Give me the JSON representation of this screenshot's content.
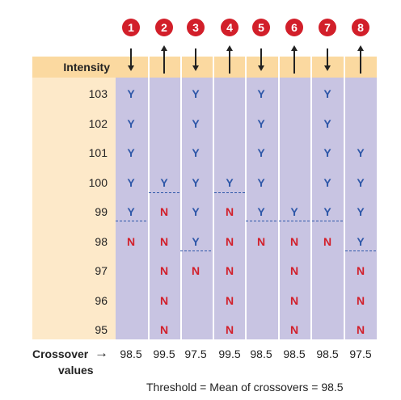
{
  "header": {
    "intensity_label": "Intensity",
    "trial_numbers": [
      "1",
      "2",
      "3",
      "4",
      "5",
      "6",
      "7",
      "8"
    ],
    "trial_directions": [
      "down",
      "up",
      "down",
      "up",
      "down",
      "up",
      "down",
      "up"
    ]
  },
  "intensities": [
    "103",
    "102",
    "101",
    "100",
    "99",
    "98",
    "97",
    "96",
    "95"
  ],
  "grid": [
    [
      "Y",
      "",
      "Y",
      "",
      "Y",
      "",
      "Y",
      ""
    ],
    [
      "Y",
      "",
      "Y",
      "",
      "Y",
      "",
      "Y",
      ""
    ],
    [
      "Y",
      "",
      "Y",
      "",
      "Y",
      "",
      "Y",
      "Y"
    ],
    [
      "Y",
      "Y",
      "Y",
      "Y",
      "Y",
      "",
      "Y",
      "Y"
    ],
    [
      "Y",
      "N",
      "Y",
      "N",
      "Y",
      "Y",
      "Y",
      "Y"
    ],
    [
      "N",
      "N",
      "Y",
      "N",
      "N",
      "N",
      "N",
      "Y"
    ],
    [
      "",
      "N",
      "N",
      "N",
      "",
      "N",
      "",
      "N"
    ],
    [
      "",
      "N",
      "",
      "N",
      "",
      "N",
      "",
      "N"
    ],
    [
      "",
      "N",
      "",
      "N",
      "",
      "N",
      "",
      "N"
    ]
  ],
  "crossover": {
    "label": "Crossover",
    "label_line2": "values",
    "values": [
      "98.5",
      "99.5",
      "97.5",
      "99.5",
      "98.5",
      "98.5",
      "98.5",
      "97.5"
    ]
  },
  "threshold_text": "Threshold = Mean of crossovers = 98.5",
  "colors": {
    "yes": "#2e57a8",
    "no": "#d21f2a",
    "badge": "#d21f2a",
    "header_band": "#fbd9a0",
    "side_column": "#fde9c9",
    "grid_background": "#c8c4e2"
  }
}
